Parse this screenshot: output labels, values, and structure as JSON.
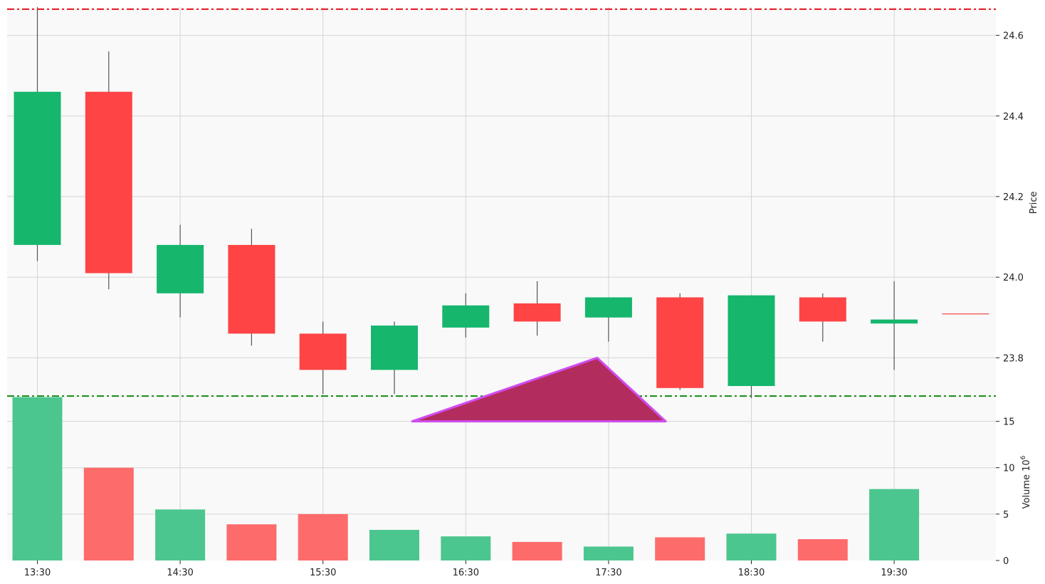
{
  "chart_data": {
    "type": "candlestick",
    "x_tick_labels": [
      "13:30",
      "14:30",
      "15:30",
      "16:30",
      "17:30",
      "18:30",
      "19:30"
    ],
    "x_tick_candle_index": [
      0,
      2,
      4,
      6,
      8,
      10,
      12
    ],
    "price_axis": {
      "label": "Price",
      "ylim": [
        23.7,
        24.67
      ],
      "ticks": [
        23.8,
        24.0,
        24.2,
        24.4,
        24.6
      ],
      "tick_labels": [
        "23.8",
        "24.0",
        "24.2",
        "24.4",
        "24.6"
      ]
    },
    "volume_axis": {
      "label": "Volume",
      "exponent_label": "10",
      "exponent_power": "6",
      "ylim": [
        0,
        17.5
      ],
      "ticks": [
        0,
        5,
        10,
        15
      ],
      "tick_labels": [
        "0",
        "5",
        "10",
        "15"
      ]
    },
    "candles": [
      {
        "open": 24.08,
        "high": 24.67,
        "low": 24.04,
        "close": 24.46,
        "volume": 17.6
      },
      {
        "open": 24.46,
        "high": 24.56,
        "low": 23.97,
        "close": 24.01,
        "volume": 10.0
      },
      {
        "open": 23.96,
        "high": 24.13,
        "low": 23.9,
        "close": 24.08,
        "volume": 5.5
      },
      {
        "open": 24.08,
        "high": 24.12,
        "low": 23.83,
        "close": 23.86,
        "volume": 3.9
      },
      {
        "open": 23.86,
        "high": 23.89,
        "low": 23.71,
        "close": 23.77,
        "volume": 5.0
      },
      {
        "open": 23.77,
        "high": 23.89,
        "low": 23.71,
        "close": 23.88,
        "volume": 3.3
      },
      {
        "open": 23.875,
        "high": 23.96,
        "low": 23.85,
        "close": 23.93,
        "volume": 2.6
      },
      {
        "open": 23.935,
        "high": 23.99,
        "low": 23.855,
        "close": 23.89,
        "volume": 2.0
      },
      {
        "open": 23.9,
        "high": 23.95,
        "low": 23.84,
        "close": 23.95,
        "volume": 1.5
      },
      {
        "open": 23.95,
        "high": 23.96,
        "low": 23.72,
        "close": 23.725,
        "volume": 2.5
      },
      {
        "open": 23.73,
        "high": 23.955,
        "low": 23.7,
        "close": 23.955,
        "volume": 2.9
      },
      {
        "open": 23.95,
        "high": 23.96,
        "low": 23.84,
        "close": 23.89,
        "volume": 2.3
      },
      {
        "open": 23.885,
        "high": 23.99,
        "low": 23.77,
        "close": 23.895,
        "volume": 7.7
      },
      {
        "open": 23.91,
        "high": 23.91,
        "low": 23.91,
        "close": 23.91,
        "volume": 0
      }
    ],
    "horizontal_lines": [
      {
        "name": "resistance",
        "price": 24.665,
        "color": "#e8141c",
        "style": "dash-dot"
      },
      {
        "name": "support",
        "price": 23.705,
        "color": "#128a12",
        "style": "dash-dot"
      }
    ],
    "annotation_triangle": {
      "points": [
        [
          5.25,
          15
        ],
        [
          7.84,
          23.8
        ],
        [
          8.8,
          15
        ]
      ],
      "fill": "#b22d5e",
      "stroke": "#d14df0"
    },
    "colors": {
      "up": "#16b66d",
      "down": "#fe4445",
      "up_volume": "#4cc68f",
      "down_volume": "#fe6b6b",
      "wick": "#555555",
      "plot_background": "#f9f9f9"
    },
    "grid": true
  }
}
